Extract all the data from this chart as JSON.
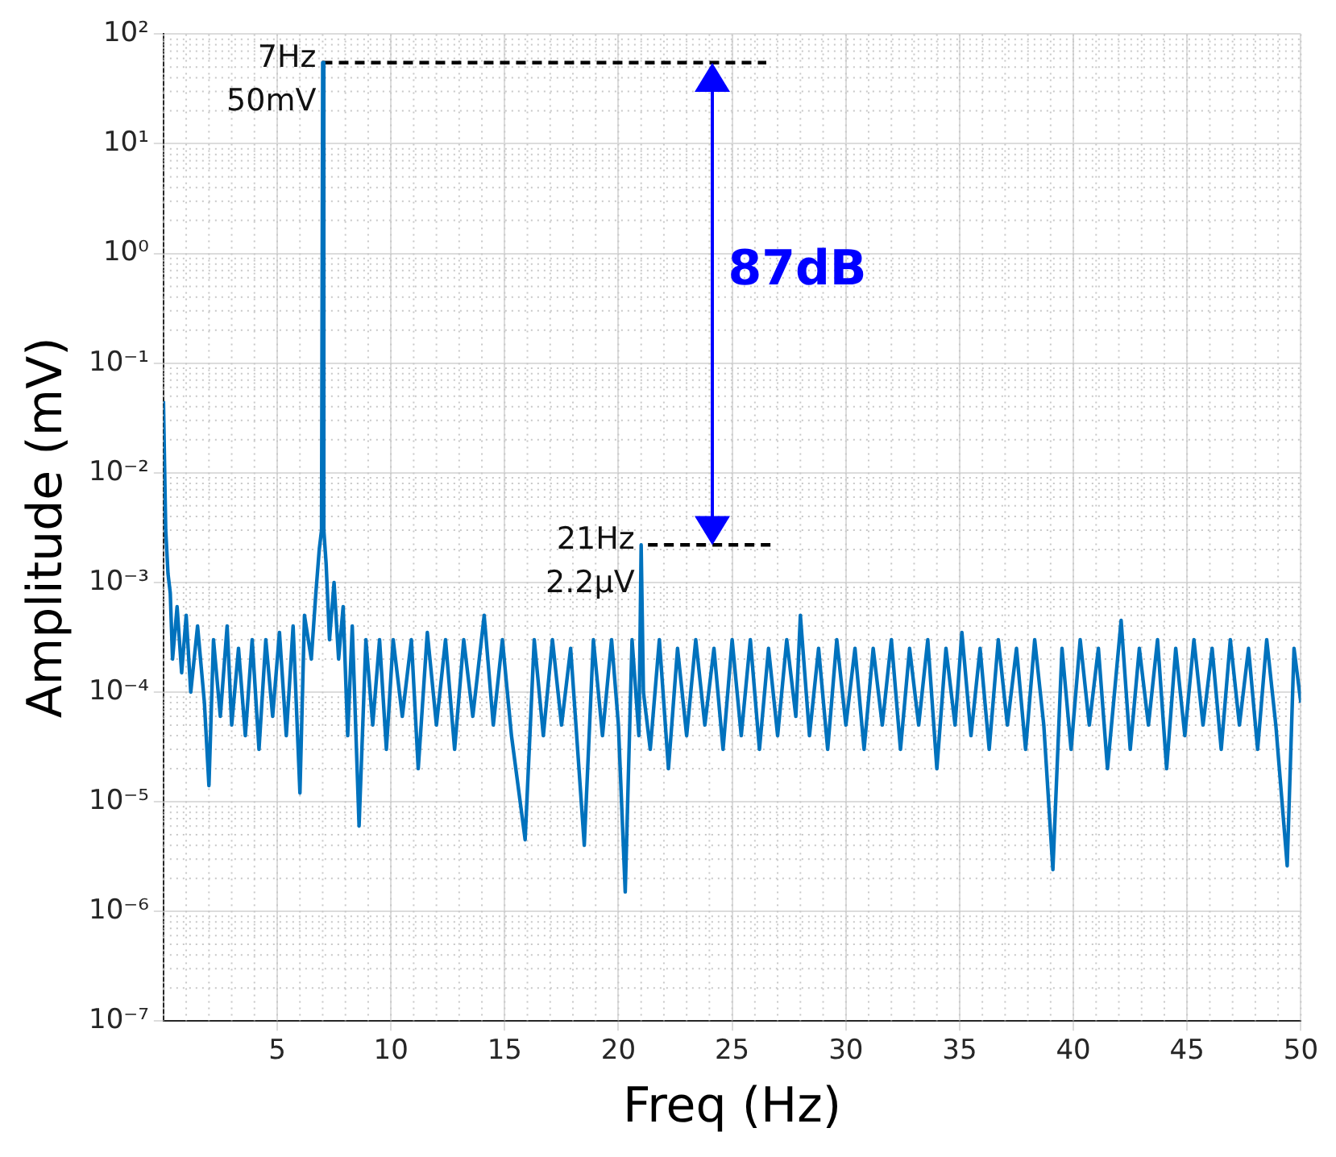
{
  "chart_data": {
    "type": "line",
    "xlabel": "Freq (Hz)",
    "ylabel": "Amplitude (mV)",
    "log": "y",
    "grid": true,
    "legend": false,
    "marker": "none",
    "line_style": "solid",
    "xlim": [
      0,
      50
    ],
    "xticks": [
      5,
      10,
      15,
      20,
      25,
      30,
      35,
      40,
      45,
      50
    ],
    "ylim": [
      1e-07,
      100
    ],
    "yticks": [
      {
        "value": 1e-07,
        "label": "10⁻⁷"
      },
      {
        "value": 1e-06,
        "label": "10⁻⁶"
      },
      {
        "value": 1e-05,
        "label": "10⁻⁵"
      },
      {
        "value": 0.0001,
        "label": "10⁻⁴"
      },
      {
        "value": 0.001,
        "label": "10⁻³"
      },
      {
        "value": 0.01,
        "label": "10⁻²"
      },
      {
        "value": 0.1,
        "label": "10⁻¹"
      },
      {
        "value": 1,
        "label": "10⁰"
      },
      {
        "value": 10,
        "label": "10¹"
      },
      {
        "value": 100,
        "label": "10²"
      }
    ],
    "series": [
      {
        "color": "#0072bd",
        "x": [
          0,
          0.1,
          0.2,
          0.3,
          0.4,
          0.6,
          0.8,
          1.0,
          1.2,
          1.5,
          1.8,
          2.0,
          2.2,
          2.5,
          2.8,
          3.0,
          3.3,
          3.6,
          3.9,
          4.2,
          4.5,
          4.8,
          5.1,
          5.4,
          5.7,
          6.0,
          6.2,
          6.5,
          6.7,
          6.85,
          6.95,
          7.0,
          7.05,
          7.15,
          7.3,
          7.5,
          7.7,
          7.9,
          8.1,
          8.3,
          8.6,
          8.9,
          9.2,
          9.5,
          9.8,
          10.1,
          10.5,
          10.9,
          11.2,
          11.6,
          12.0,
          12.4,
          12.8,
          13.2,
          13.6,
          14.1,
          14.5,
          14.9,
          15.3,
          15.9,
          16.3,
          16.7,
          17.1,
          17.5,
          17.9,
          18.5,
          18.9,
          19.3,
          19.7,
          20.0,
          20.3,
          20.6,
          20.9,
          21.0,
          21.1,
          21.4,
          21.8,
          22.2,
          22.6,
          23.0,
          23.4,
          23.8,
          24.2,
          24.6,
          25.0,
          25.4,
          25.8,
          26.2,
          26.6,
          27.0,
          27.4,
          27.8,
          28.0,
          28.4,
          28.8,
          29.2,
          29.6,
          30.0,
          30.4,
          30.8,
          31.2,
          31.6,
          32.0,
          32.4,
          32.8,
          33.2,
          33.6,
          34.0,
          34.4,
          34.8,
          35.1,
          35.5,
          35.9,
          36.3,
          36.7,
          37.1,
          37.5,
          37.9,
          38.3,
          38.7,
          39.1,
          39.5,
          39.9,
          40.3,
          40.7,
          41.1,
          41.5,
          42.1,
          42.5,
          42.9,
          43.3,
          43.7,
          44.1,
          44.5,
          44.9,
          45.3,
          45.7,
          46.1,
          46.5,
          46.9,
          47.3,
          47.7,
          48.1,
          48.5,
          48.9,
          49.4,
          49.7,
          50.0
        ],
        "values": [
          0.045,
          0.003,
          0.0012,
          0.0008,
          0.0002,
          0.0006,
          0.00015,
          0.0005,
          0.0001,
          0.0004,
          8e-05,
          1.4e-05,
          0.0003,
          6e-05,
          0.0004,
          5e-05,
          0.00025,
          4e-05,
          0.0003,
          3e-05,
          0.0003,
          6e-05,
          0.00035,
          4e-05,
          0.0004,
          1.2e-05,
          0.0005,
          0.0002,
          0.0008,
          0.002,
          0.003,
          55,
          0.003,
          0.0015,
          0.0003,
          0.001,
          0.0002,
          0.0006,
          4e-05,
          0.0004,
          6e-06,
          0.0003,
          5e-05,
          0.0003,
          3e-05,
          0.0003,
          6e-05,
          0.0003,
          2e-05,
          0.00035,
          5e-05,
          0.0003,
          3e-05,
          0.0003,
          6e-05,
          0.0005,
          5e-05,
          0.0003,
          4e-05,
          4.5e-06,
          0.0003,
          4e-05,
          0.0003,
          5e-05,
          0.00025,
          4e-06,
          0.0003,
          4e-05,
          0.0003,
          5e-05,
          1.5e-06,
          0.0003,
          4e-05,
          0.0022,
          0.0001,
          3e-05,
          0.0003,
          2e-05,
          0.00025,
          4e-05,
          0.0003,
          5e-05,
          0.00025,
          3e-05,
          0.0003,
          4e-05,
          0.0003,
          3e-05,
          0.00025,
          4e-05,
          0.0003,
          6e-05,
          0.0005,
          4e-05,
          0.00025,
          3e-05,
          0.0003,
          5e-05,
          0.00025,
          3e-05,
          0.00025,
          5e-05,
          0.0003,
          3e-05,
          0.00025,
          5e-05,
          0.0003,
          2e-05,
          0.00025,
          5e-05,
          0.00035,
          4e-05,
          0.00025,
          3e-05,
          0.0003,
          5e-05,
          0.00025,
          3e-05,
          0.0003,
          5e-05,
          2.4e-06,
          0.00025,
          3e-05,
          0.0003,
          5e-05,
          0.00025,
          2e-05,
          0.00045,
          3e-05,
          0.00025,
          5e-05,
          0.0003,
          2e-05,
          0.00025,
          4e-05,
          0.0003,
          5e-05,
          0.00025,
          3e-05,
          0.0003,
          5e-05,
          0.00025,
          3e-05,
          0.0003,
          5e-05,
          2.6e-06,
          0.00025,
          8e-05
        ]
      },
      {
        "color": "#000000",
        "line_style": "dashed",
        "x": [
          7,
          26.5
        ],
        "values": [
          55,
          55
        ]
      },
      {
        "color": "#000000",
        "line_style": "dashed",
        "x": [
          21.3,
          26.8
        ],
        "values": [
          0.0022,
          0.0022
        ]
      }
    ],
    "annotations": [
      {
        "text": "7Hz\n50mV",
        "x": 7,
        "y": 55
      },
      {
        "text": "21Hz\n2.2μV",
        "x": 21,
        "y": 0.0022
      },
      "87dB"
    ]
  }
}
